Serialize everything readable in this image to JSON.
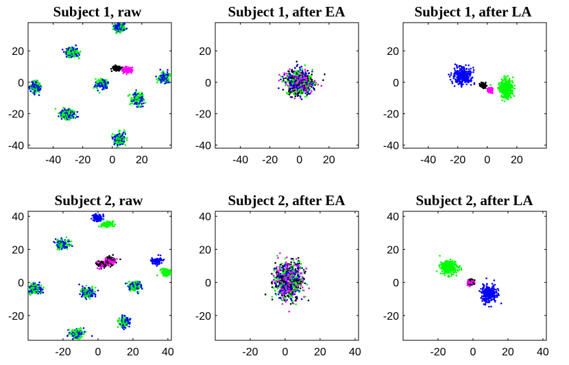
{
  "figure": {
    "description_colors": {
      "class1": "#0000ff",
      "class2": "#00ff00",
      "class3": "#000000",
      "class4": "#ff00ff"
    }
  },
  "chart_data": [
    {
      "type": "scatter",
      "title": "Subject 1, raw",
      "xlim": [
        -57,
        40
      ],
      "ylim": [
        -42,
        38
      ],
      "xticks": [
        -40,
        -20,
        0,
        20
      ],
      "yticks": [
        -40,
        -20,
        0,
        20
      ],
      "xticklabels": [
        "-40",
        "-20",
        "0",
        "20"
      ],
      "yticklabels": [
        "-40",
        "-20",
        "0",
        "20"
      ],
      "clusters": [
        {
          "x": 5,
          "y": 35,
          "rx": 4,
          "ry": 3,
          "colors": [
            "#00ff00",
            "#0000ff"
          ]
        },
        {
          "x": -27,
          "y": 19,
          "rx": 4,
          "ry": 3,
          "colors": [
            "#00ff00",
            "#0000ff"
          ]
        },
        {
          "x": 3,
          "y": 9,
          "rx": 3,
          "ry": 1.5,
          "colors": [
            "#000000"
          ]
        },
        {
          "x": 10,
          "y": 8,
          "rx": 3,
          "ry": 2,
          "colors": [
            "#ff00ff"
          ]
        },
        {
          "x": -52,
          "y": -3,
          "rx": 3.5,
          "ry": 3.5,
          "colors": [
            "#00ff00",
            "#0000ff"
          ]
        },
        {
          "x": -7,
          "y": -1,
          "rx": 4,
          "ry": 3,
          "colors": [
            "#00ff00",
            "#0000ff"
          ]
        },
        {
          "x": 35,
          "y": 3,
          "rx": 4,
          "ry": 3,
          "colors": [
            "#00ff00",
            "#0000ff"
          ]
        },
        {
          "x": 17,
          "y": -11,
          "rx": 4,
          "ry": 4,
          "colors": [
            "#00ff00",
            "#0000ff"
          ]
        },
        {
          "x": -30,
          "y": -20,
          "rx": 5,
          "ry": 3,
          "colors": [
            "#00ff00",
            "#0000ff"
          ]
        },
        {
          "x": 5,
          "y": -36,
          "rx": 4,
          "ry": 4,
          "colors": [
            "#00ff00",
            "#0000ff"
          ]
        }
      ]
    },
    {
      "type": "scatter",
      "title": "Subject 1, after EA",
      "xlim": [
        -57,
        40
      ],
      "ylim": [
        -42,
        38
      ],
      "xticks": [
        -40,
        -20,
        0,
        20
      ],
      "yticks": [
        -40,
        -20,
        0,
        20
      ],
      "xticklabels": [
        "-40",
        "-20",
        "0",
        "20"
      ],
      "yticklabels": [
        "-40",
        "-20",
        "0",
        "20"
      ],
      "clusters": [
        {
          "x": 0,
          "y": 0,
          "rx": 9,
          "ry": 8,
          "colors": [
            "#0000ff",
            "#00ff00",
            "#000000",
            "#ff00ff"
          ]
        }
      ]
    },
    {
      "type": "scatter",
      "title": "Subject 1, after LA",
      "xlim": [
        -57,
        40
      ],
      "ylim": [
        -42,
        38
      ],
      "xticks": [
        -40,
        -20,
        0,
        20
      ],
      "yticks": [
        -40,
        -20,
        0,
        20
      ],
      "xticklabels": [
        "-40",
        "-20",
        "0",
        "20"
      ],
      "yticklabels": [
        "-40",
        "-20",
        "0",
        "20"
      ],
      "clusters": [
        {
          "x": -17,
          "y": 4,
          "rx": 6,
          "ry": 5,
          "colors": [
            "#0000ff"
          ]
        },
        {
          "x": -3,
          "y": -2,
          "rx": 2,
          "ry": 1.5,
          "colors": [
            "#000000"
          ]
        },
        {
          "x": 2,
          "y": -5,
          "rx": 2,
          "ry": 1.5,
          "colors": [
            "#ff00ff"
          ]
        },
        {
          "x": 13,
          "y": -4,
          "rx": 4.5,
          "ry": 6,
          "colors": [
            "#00ff00"
          ]
        }
      ]
    },
    {
      "type": "scatter",
      "title": "Subject 2, raw",
      "xlim": [
        -40,
        42
      ],
      "ylim": [
        -35,
        43
      ],
      "xticks": [
        -20,
        0,
        20,
        40
      ],
      "yticks": [
        -20,
        0,
        20,
        40
      ],
      "xticklabels": [
        "-20",
        "0",
        "20",
        "40"
      ],
      "yticklabels": [
        "-20",
        "0",
        "20",
        "40"
      ],
      "clusters": [
        {
          "x": 0,
          "y": 39,
          "rx": 3,
          "ry": 2,
          "colors": [
            "#0000ff"
          ]
        },
        {
          "x": 5,
          "y": 35,
          "rx": 3,
          "ry": 2,
          "colors": [
            "#00ff00"
          ]
        },
        {
          "x": -20,
          "y": 23,
          "rx": 4,
          "ry": 3,
          "colors": [
            "#00ff00",
            "#0000ff"
          ]
        },
        {
          "x": 2,
          "y": 11,
          "rx": 3,
          "ry": 2,
          "colors": [
            "#ff00ff",
            "#000000"
          ]
        },
        {
          "x": 7,
          "y": 13,
          "rx": 3,
          "ry": 2.5,
          "colors": [
            "#ff00ff",
            "#000000"
          ]
        },
        {
          "x": 34,
          "y": 13,
          "rx": 3,
          "ry": 2,
          "colors": [
            "#0000ff"
          ]
        },
        {
          "x": 39,
          "y": 6,
          "rx": 3,
          "ry": 2,
          "colors": [
            "#00ff00"
          ]
        },
        {
          "x": 21,
          "y": -2,
          "rx": 3.5,
          "ry": 3,
          "colors": [
            "#0000ff",
            "#00ff00"
          ]
        },
        {
          "x": -36,
          "y": -4,
          "rx": 4,
          "ry": 3,
          "colors": [
            "#00ff00",
            "#0000ff"
          ]
        },
        {
          "x": -6,
          "y": -6,
          "rx": 4,
          "ry": 3,
          "colors": [
            "#00ff00",
            "#0000ff"
          ]
        },
        {
          "x": 15,
          "y": -24,
          "rx": 3,
          "ry": 3,
          "colors": [
            "#00ff00",
            "#0000ff"
          ]
        },
        {
          "x": -12,
          "y": -31,
          "rx": 4,
          "ry": 3,
          "colors": [
            "#00ff00",
            "#0000ff"
          ]
        }
      ]
    },
    {
      "type": "scatter",
      "title": "Subject 2, after EA",
      "xlim": [
        -40,
        42
      ],
      "ylim": [
        -35,
        43
      ],
      "xticks": [
        -20,
        0,
        20,
        40
      ],
      "yticks": [
        -20,
        0,
        20,
        40
      ],
      "xticklabels": [
        "-20",
        "0",
        "20",
        "40"
      ],
      "yticklabels": [
        "-20",
        "0",
        "20",
        "40"
      ],
      "clusters": [
        {
          "x": 2,
          "y": 1,
          "rx": 8,
          "ry": 11,
          "colors": [
            "#0000ff",
            "#00ff00",
            "#000000",
            "#ff00ff"
          ]
        }
      ]
    },
    {
      "type": "scatter",
      "title": "Subject 2, after LA",
      "xlim": [
        -40,
        42
      ],
      "ylim": [
        -35,
        43
      ],
      "xticks": [
        -20,
        0,
        20,
        40
      ],
      "yticks": [
        -20,
        0,
        20,
        40
      ],
      "xticklabels": [
        "-20",
        "0",
        "20",
        "40"
      ],
      "yticklabels": [
        "-20",
        "0",
        "20",
        "40"
      ],
      "clusters": [
        {
          "x": -14,
          "y": 9,
          "rx": 5,
          "ry": 4,
          "colors": [
            "#00ff00"
          ]
        },
        {
          "x": -1,
          "y": 0,
          "rx": 2,
          "ry": 2,
          "colors": [
            "#ff00ff",
            "#000000"
          ]
        },
        {
          "x": 9,
          "y": -7,
          "rx": 4.5,
          "ry": 5,
          "colors": [
            "#0000ff"
          ]
        }
      ]
    }
  ]
}
